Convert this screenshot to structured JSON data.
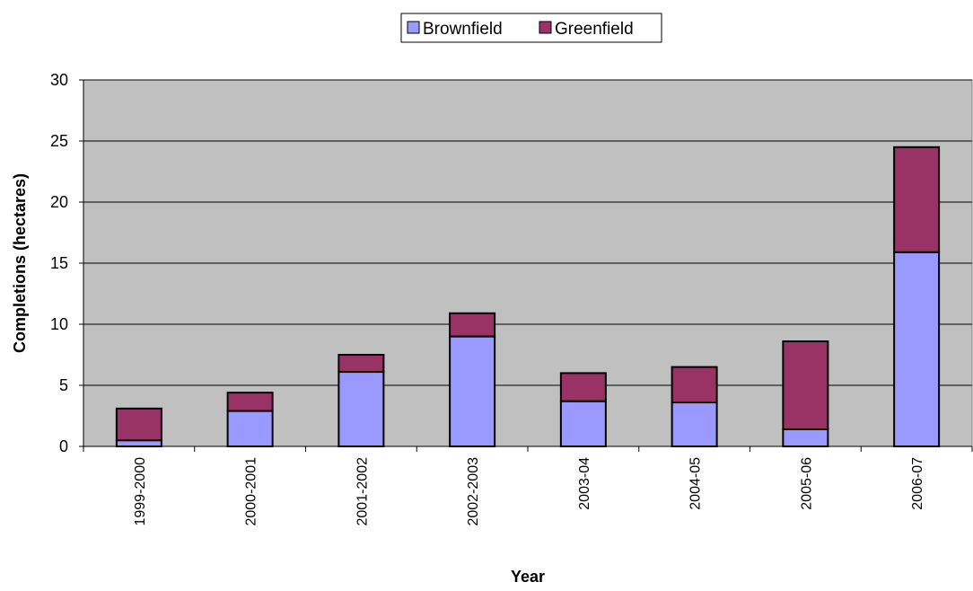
{
  "chart_data": {
    "type": "bar",
    "stacked": true,
    "title": "",
    "xlabel": "Year",
    "ylabel": "Completions (hectares)",
    "categories": [
      "1999-2000",
      "2000-2001",
      "2001-2002",
      "2002-2003",
      "2003-04",
      "2004-05",
      "2005-06",
      "2006-07"
    ],
    "series": [
      {
        "name": "Brownfield",
        "color": "#9999ff",
        "values": [
          0.5,
          2.9,
          6.1,
          9.0,
          3.7,
          3.6,
          1.4,
          15.9
        ]
      },
      {
        "name": "Greenfield",
        "color": "#993366",
        "values": [
          2.6,
          1.5,
          1.4,
          1.9,
          2.3,
          2.9,
          7.2,
          8.6
        ]
      }
    ],
    "ylim": [
      0,
      30
    ],
    "yticks": [
      0,
      5,
      10,
      15,
      20,
      25,
      30
    ],
    "grid": true,
    "plot_background": "#c0c0c0",
    "legend_position": "top"
  }
}
